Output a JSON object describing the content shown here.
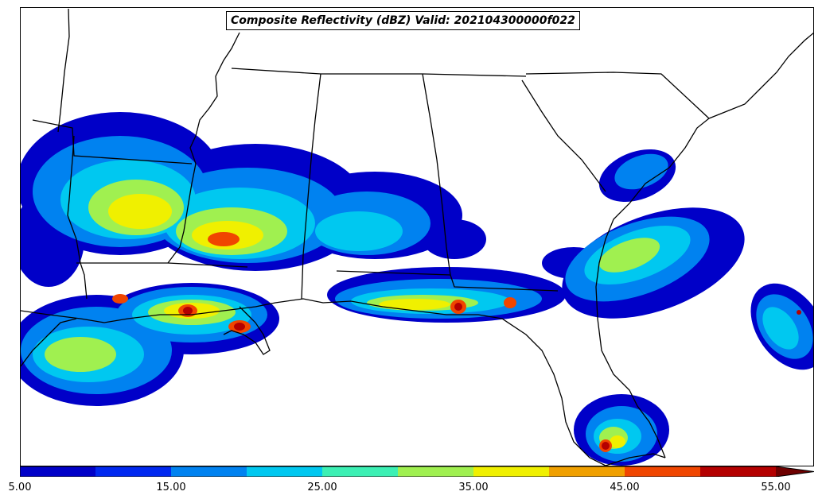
{
  "title": "Composite Reflectivity (dBZ) Valid: 202104300000f022",
  "colorbar": {
    "ticks": [
      "5.00",
      "15.00",
      "25.00",
      "35.00",
      "45.00",
      "55.00"
    ],
    "colors": [
      "#0000c8",
      "#0028f0",
      "#0082f0",
      "#00c8f0",
      "#3cf0b4",
      "#a0f050",
      "#f0f000",
      "#f0a000",
      "#f04600",
      "#b40000"
    ],
    "over_color": "#6e0000",
    "extend": "max"
  },
  "legend_levels": [
    "5",
    "10",
    "15",
    "20",
    "25",
    "30",
    "35",
    "40",
    "45",
    "50",
    "55"
  ]
}
